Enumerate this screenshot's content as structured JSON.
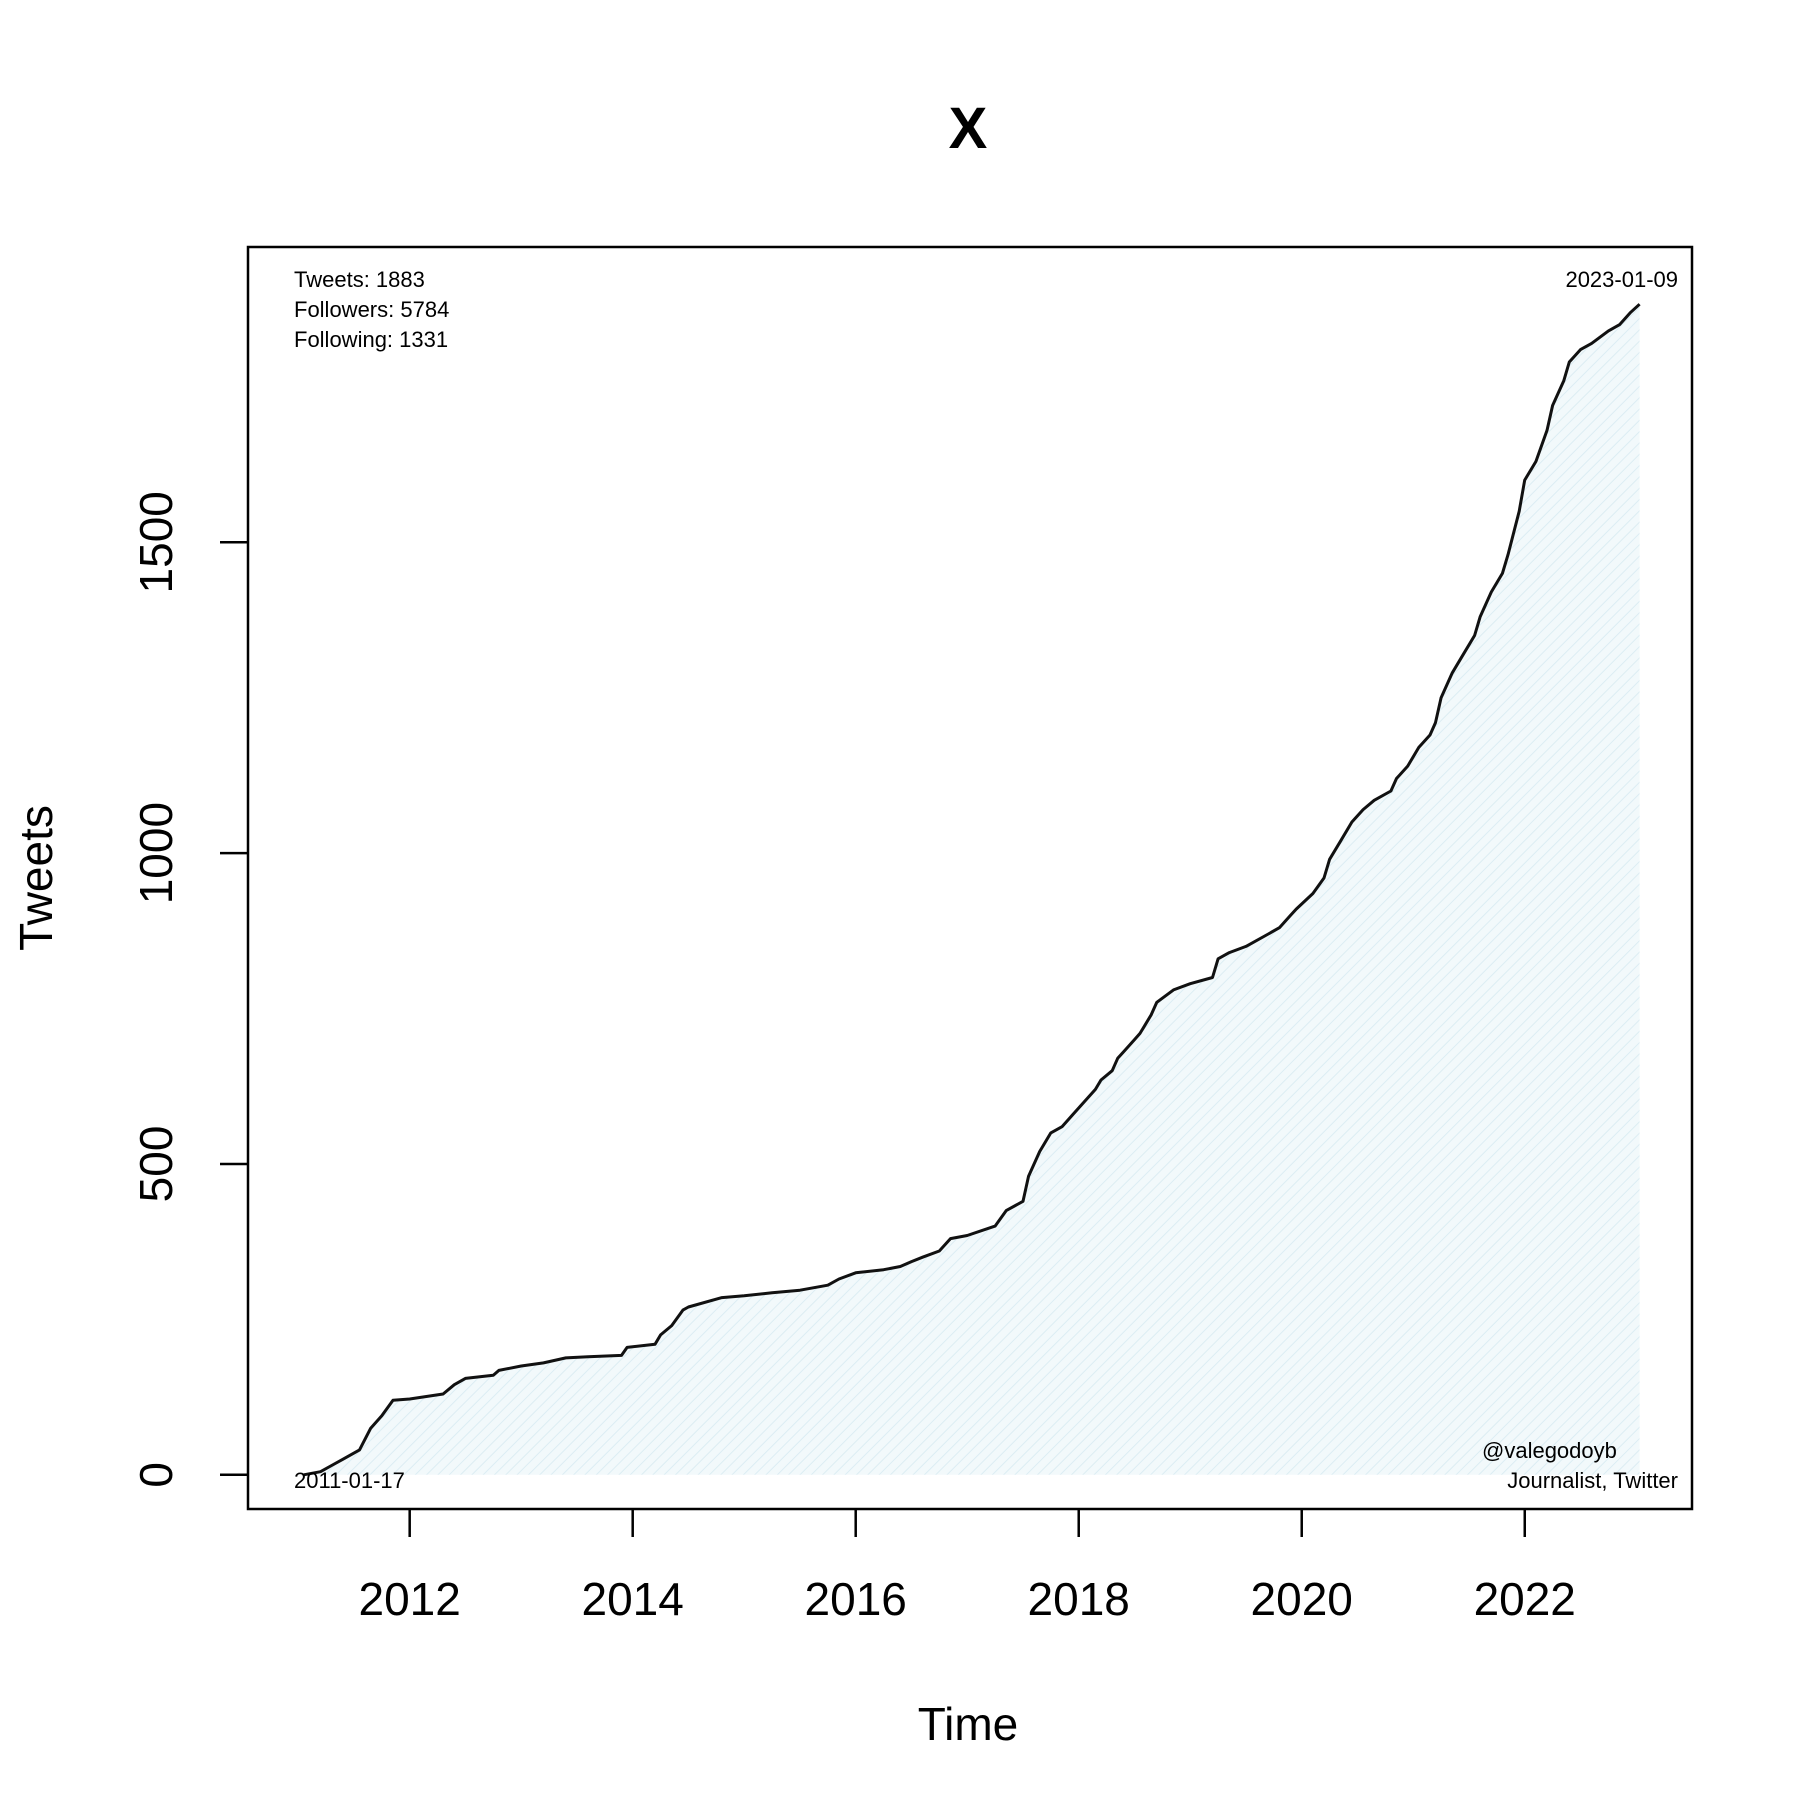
{
  "chart_data": {
    "type": "area",
    "title": "X",
    "xlabel": "Time",
    "ylabel": "Tweets",
    "xlim": [
      2010.55,
      2023.5
    ],
    "ylim": [
      -55,
      1975
    ],
    "x_ticks": [
      2012,
      2014,
      2016,
      2018,
      2020,
      2022
    ],
    "y_ticks": [
      0,
      500,
      1000,
      1500
    ],
    "grid": false,
    "fill_color": "#eef7fa",
    "line_color": "#111111",
    "annotations": {
      "stats": [
        "Tweets: 1883",
        "Followers: 5784",
        "Following: 1331"
      ],
      "start_date": "2011-01-17",
      "end_date": "2023-01-09",
      "handle": "@valegodoyb",
      "description": "Journalist, Twitter"
    },
    "series": [
      {
        "x": [
          2011.05,
          2011.2,
          2011.3,
          2011.4,
          2011.55,
          2011.65,
          2011.75,
          2011.85,
          2012.0,
          2012.3,
          2012.4,
          2012.5,
          2012.75,
          2012.8,
          2013.0,
          2013.2,
          2013.4,
          2013.6,
          2013.9,
          2013.95,
          2014.2,
          2014.25,
          2014.35,
          2014.45,
          2014.5,
          2014.8,
          2015.0,
          2015.25,
          2015.5,
          2015.75,
          2015.85,
          2016.0,
          2016.25,
          2016.4,
          2016.5,
          2016.6,
          2016.75,
          2016.85,
          2017.0,
          2017.25,
          2017.35,
          2017.5,
          2017.55,
          2017.65,
          2017.75,
          2017.85,
          2017.95,
          2018.05,
          2018.15,
          2018.2,
          2018.3,
          2018.35,
          2018.4,
          2018.5,
          2018.55,
          2018.65,
          2018.7,
          2018.85,
          2019.0,
          2019.2,
          2019.25,
          2019.35,
          2019.5,
          2019.7,
          2019.8,
          2019.9,
          2019.95,
          2020.1,
          2020.2,
          2020.25,
          2020.35,
          2020.45,
          2020.55,
          2020.65,
          2020.8,
          2020.85,
          2020.95,
          2021.05,
          2021.15,
          2021.2,
          2021.25,
          2021.35,
          2021.45,
          2021.55,
          2021.6,
          2021.7,
          2021.8,
          2021.85,
          2021.95,
          2022.0,
          2022.1,
          2022.2,
          2022.25,
          2022.35,
          2022.4,
          2022.5,
          2022.6,
          2022.75,
          2022.85,
          2022.95,
          2023.03
        ],
        "y": [
          0,
          5,
          15,
          25,
          40,
          75,
          95,
          120,
          122,
          130,
          145,
          155,
          160,
          168,
          175,
          180,
          188,
          190,
          192,
          205,
          210,
          225,
          240,
          265,
          270,
          285,
          288,
          293,
          297,
          305,
          315,
          325,
          330,
          335,
          343,
          350,
          360,
          380,
          385,
          400,
          425,
          440,
          480,
          520,
          550,
          560,
          580,
          600,
          620,
          635,
          650,
          670,
          680,
          700,
          710,
          740,
          760,
          780,
          790,
          800,
          830,
          840,
          850,
          870,
          880,
          900,
          910,
          935,
          960,
          990,
          1020,
          1050,
          1070,
          1085,
          1100,
          1120,
          1140,
          1170,
          1190,
          1210,
          1250,
          1290,
          1320,
          1350,
          1380,
          1420,
          1450,
          1480,
          1550,
          1600,
          1630,
          1680,
          1720,
          1760,
          1790,
          1810,
          1820,
          1840,
          1850,
          1870,
          1883
        ]
      }
    ]
  }
}
